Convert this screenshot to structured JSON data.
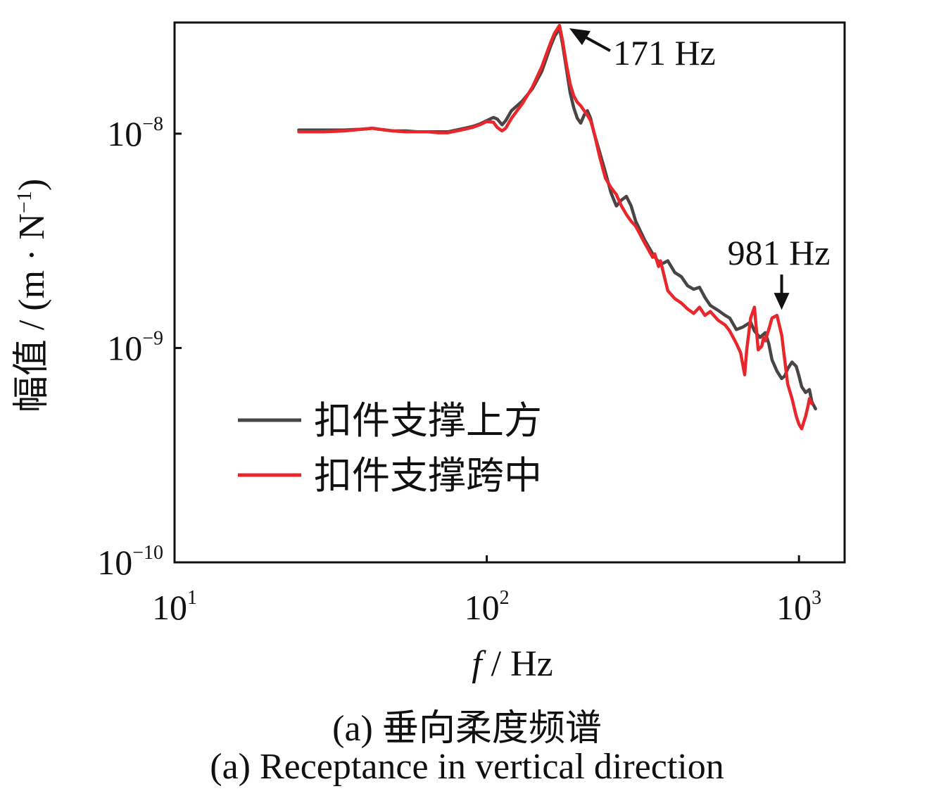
{
  "colors": {
    "series_above": "#4a4545",
    "series_mid": "#e8262b",
    "axis": "#111111"
  },
  "caption_cn": "(a)  垂向柔度频谱",
  "caption_en": "(a)  Receptance in vertical direction",
  "chart_data": {
    "type": "line",
    "x_scale": "log",
    "y_scale": "log",
    "xlim": [
      10,
      1400
    ],
    "ylim": [
      1e-10,
      3.3e-08
    ],
    "xlabel_italic": "f",
    "xlabel_rest": " / Hz",
    "ylabel": "幅值 / (m · N",
    "ylabel_sup": "−1",
    "ylabel_close": ")",
    "x_ticks": [
      {
        "value": 10,
        "base": "10",
        "exp": "1"
      },
      {
        "value": 100,
        "base": "10",
        "exp": "2"
      },
      {
        "value": 1000,
        "base": "10",
        "exp": "3"
      }
    ],
    "y_ticks": [
      {
        "value": 1e-08,
        "base": "10",
        "exp": "−8"
      },
      {
        "value": 1e-09,
        "base": "10",
        "exp": "−9"
      },
      {
        "value": 1e-10,
        "base": "10",
        "exp": "−10"
      }
    ],
    "legend_position": "lower-left",
    "series": [
      {
        "name": "扣件支撑上方",
        "x": [
          25,
          30,
          35,
          40,
          43,
          45,
          50,
          55,
          60,
          65,
          70,
          75,
          80,
          85,
          90,
          95,
          100,
          105,
          108,
          112,
          115,
          120,
          130,
          140,
          150,
          160,
          165,
          171,
          175,
          180,
          185,
          190,
          195,
          200,
          205,
          210,
          215,
          220,
          230,
          240,
          250,
          260,
          270,
          280,
          290,
          300,
          320,
          340,
          360,
          380,
          400,
          420,
          440,
          460,
          480,
          500,
          520,
          550,
          580,
          600,
          630,
          660,
          700,
          720,
          750,
          780,
          800,
          820,
          850,
          880,
          900,
          920,
          950,
          980,
          1000,
          1020,
          1050,
          1080,
          1100,
          1130
        ],
        "y": [
          1.04e-08,
          1.04e-08,
          1.04e-08,
          1.05e-08,
          1.06e-08,
          1.05e-08,
          1.03e-08,
          1.03e-08,
          1.02e-08,
          1.02e-08,
          1.02e-08,
          1.02e-08,
          1.04e-08,
          1.06e-08,
          1.08e-08,
          1.11e-08,
          1.15e-08,
          1.19e-08,
          1.17e-08,
          1.1e-08,
          1.15e-08,
          1.28e-08,
          1.42e-08,
          1.62e-08,
          1.95e-08,
          2.55e-08,
          2.85e-08,
          3.1e-08,
          2.6e-08,
          2e-08,
          1.55e-08,
          1.32e-08,
          1.18e-08,
          1.12e-08,
          1.22e-08,
          1.28e-08,
          1.18e-08,
          1.02e-08,
          8.2e-09,
          6.6e-09,
          5.3e-09,
          4.6e-09,
          4.9e-09,
          5.1e-09,
          4.6e-09,
          3.9e-09,
          3.2e-09,
          2.75e-09,
          2.45e-09,
          2.55e-09,
          2.25e-09,
          2.15e-09,
          1.95e-09,
          1.88e-09,
          1.92e-09,
          1.72e-09,
          1.58e-09,
          1.5e-09,
          1.42e-09,
          1.38e-09,
          1.22e-09,
          1.25e-09,
          1.32e-09,
          1.2e-09,
          1.12e-09,
          1.18e-09,
          1.05e-09,
          8.8e-10,
          7.8e-10,
          7.2e-10,
          7.4e-10,
          8e-10,
          8.6e-10,
          8.2e-10,
          7.4e-10,
          6.6e-10,
          6.2e-10,
          6.4e-10,
          5.6e-10,
          5.2e-10
        ]
      },
      {
        "name": "扣件支撑跨中",
        "x": [
          25,
          30,
          35,
          40,
          43,
          45,
          50,
          55,
          60,
          65,
          70,
          75,
          80,
          85,
          90,
          95,
          100,
          105,
          108,
          112,
          115,
          120,
          130,
          140,
          150,
          160,
          165,
          171,
          175,
          180,
          185,
          190,
          195,
          200,
          205,
          210,
          215,
          220,
          230,
          240,
          250,
          260,
          270,
          280,
          290,
          300,
          320,
          340,
          345,
          355,
          360,
          380,
          400,
          420,
          440,
          460,
          480,
          500,
          520,
          550,
          580,
          600,
          630,
          650,
          670,
          680,
          700,
          720,
          740,
          760,
          770,
          780,
          800,
          820,
          850,
          880,
          900,
          920,
          950,
          980,
          1000,
          1020,
          1050,
          1070,
          1080,
          1100
        ],
        "y": [
          1.02e-08,
          1.02e-08,
          1.03e-08,
          1.05e-08,
          1.06e-08,
          1.05e-08,
          1.03e-08,
          1.02e-08,
          1.02e-08,
          1.02e-08,
          1.01e-08,
          1.01e-08,
          1.03e-08,
          1.05e-08,
          1.07e-08,
          1.1e-08,
          1.14e-08,
          1.13e-08,
          1.07e-08,
          1.03e-08,
          1.06e-08,
          1.18e-08,
          1.38e-08,
          1.65e-08,
          2.05e-08,
          2.65e-08,
          2.95e-08,
          3.2e-08,
          2.7e-08,
          2.1e-08,
          1.7e-08,
          1.5e-08,
          1.4e-08,
          1.35e-08,
          1.28e-08,
          1.22e-08,
          1.15e-08,
          1.03e-08,
          7.8e-09,
          6.2e-09,
          5.6e-09,
          5.2e-09,
          4.6e-09,
          4.2e-09,
          3.9e-09,
          3.7e-09,
          3.1e-09,
          2.65e-09,
          2.75e-09,
          2.4e-09,
          2.55e-09,
          1.85e-09,
          1.7e-09,
          1.62e-09,
          1.52e-09,
          1.45e-09,
          1.55e-09,
          1.42e-09,
          1.48e-09,
          1.35e-09,
          1.28e-09,
          1.2e-09,
          1.05e-09,
          9.5e-10,
          7.5e-10,
          9.8e-10,
          1.38e-09,
          1.55e-09,
          9.8e-10,
          1.02e-09,
          1.12e-09,
          1.08e-09,
          1.22e-09,
          1.38e-09,
          1.42e-09,
          1.15e-09,
          8.8e-10,
          6.8e-10,
          5.8e-10,
          4.8e-10,
          4.4e-10,
          4.2e-10,
          4.8e-10,
          5.4e-10,
          5.8e-10,
          5.5e-10
        ]
      }
    ],
    "annotations": [
      {
        "text": "171 Hz",
        "x": 171,
        "y": 3.2e-08
      },
      {
        "text": "981 Hz",
        "x": 880,
        "y": 1.42e-09
      }
    ]
  }
}
